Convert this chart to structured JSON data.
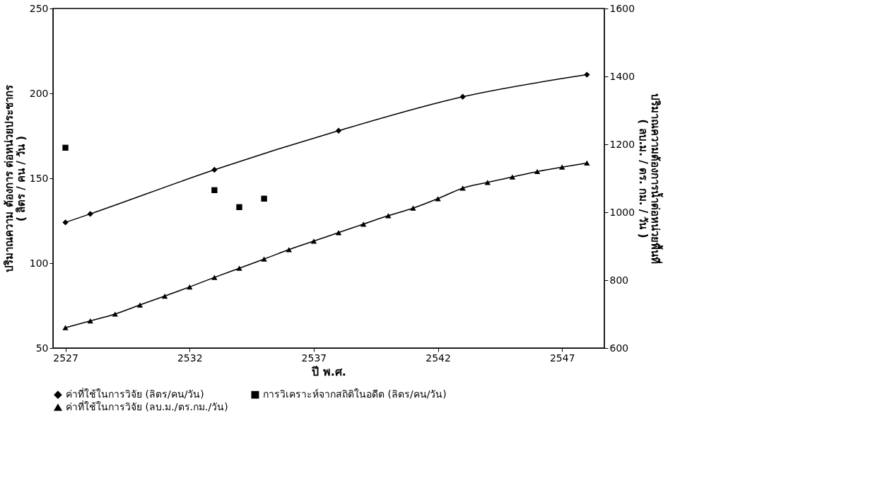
{
  "chart_data": {
    "type": "line",
    "xlabel": "ปี พ.ศ.",
    "ylabel": "ปริมาณความ ต้องการ ต่อหน่วยประชากร\n( ลิตร / คน / วัน )",
    "y2label": "ปริมาณความต้องการน้ำต่อหน่วยพื้นที่\n( ลบ.ม. / ตร. กม. / วัน )",
    "xlim": [
      2526.5,
      2548.7
    ],
    "xticks": [
      2527,
      2532,
      2537,
      2542,
      2547
    ],
    "ylim": [
      50,
      250
    ],
    "yticks": [
      50,
      100,
      150,
      200,
      250
    ],
    "y2lim": [
      600,
      1600
    ],
    "y2ticks": [
      600,
      800,
      1000,
      1200,
      1400,
      1600
    ],
    "grid": false,
    "legend": "bottom",
    "series": [
      {
        "name": "ค่าที่ใช้ในการวิจัย (ลิตร/คน/วัน)",
        "marker": "diamond",
        "color": "#000000",
        "x": [
          2527,
          2528,
          2533,
          2538,
          2543,
          2548
        ],
        "values": [
          124,
          129,
          155,
          178,
          198,
          211
        ]
      },
      {
        "name": "การวิเคราะห์จากสถิติในอดีต (ลิตร/คน/วัน)",
        "type": "scatter",
        "marker": "square",
        "color": "#000000",
        "x": [
          2527,
          2533,
          2534,
          2535
        ],
        "values": [
          168,
          143,
          133,
          138
        ]
      },
      {
        "name": "ค่าที่ใช้ในการวิจัย (ลบ.ม./ตร.กม./วัน)",
        "marker": "triangle",
        "axis": "y2",
        "color": "#000000",
        "x": [
          2527,
          2528,
          2529,
          2530,
          2531,
          2532,
          2533,
          2534,
          2535,
          2536,
          2537,
          2538,
          2539,
          2540,
          2541,
          2542,
          2543,
          2544,
          2545,
          2546,
          2547,
          2548
        ],
        "values": [
          660,
          680,
          700,
          727,
          753,
          780,
          808,
          835,
          862,
          890,
          915,
          940,
          965,
          990,
          1012,
          1040,
          1071,
          1088,
          1104,
          1120,
          1133,
          1145
        ]
      }
    ]
  }
}
